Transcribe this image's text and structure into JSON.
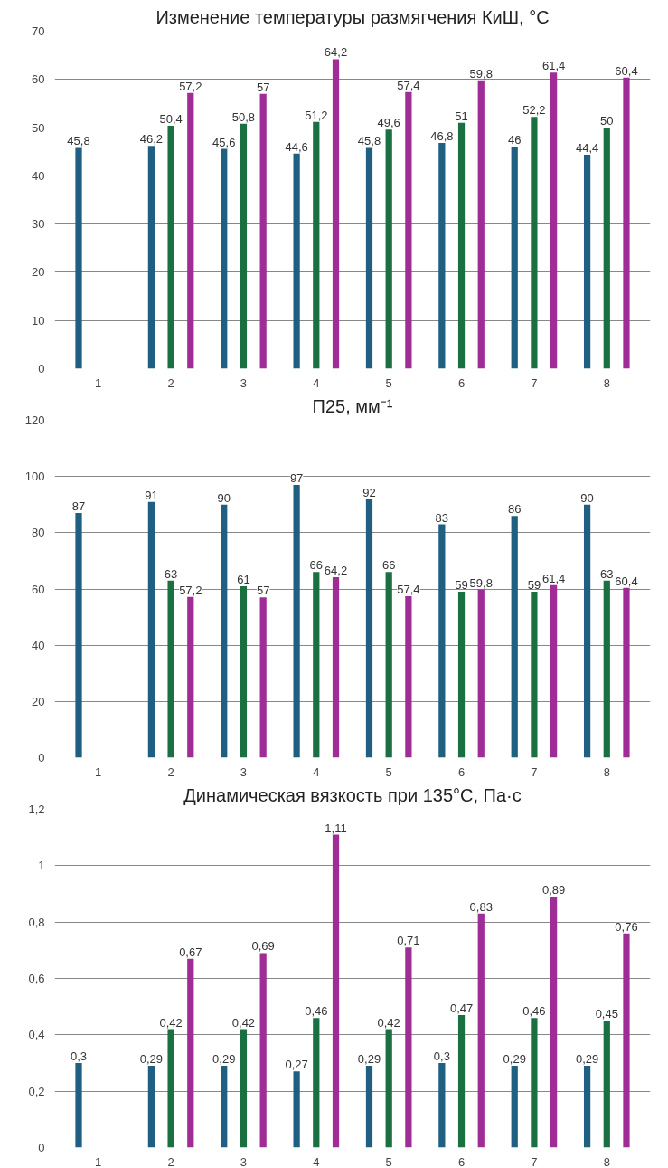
{
  "chart_data": [
    {
      "type": "bar",
      "title": "Изменение температуры размягчения КиШ, °С",
      "categories": [
        "1",
        "2",
        "3",
        "4",
        "5",
        "6",
        "7",
        "8"
      ],
      "ylim": [
        0,
        70
      ],
      "yticks": [
        0,
        10,
        20,
        30,
        40,
        50,
        60,
        70
      ],
      "grid": "y",
      "series": [
        {
          "color": "#1f5f82",
          "values": [
            45.8,
            46.2,
            45.6,
            44.6,
            45.8,
            46.8,
            46,
            44.4
          ],
          "value_labels": [
            "45,8",
            "46,2",
            "45,6",
            "44,6",
            "45,8",
            "46,8",
            "46",
            "44,4"
          ]
        },
        {
          "color": "#1a7040",
          "values": [
            null,
            50.4,
            50.8,
            51.2,
            49.6,
            51,
            52.2,
            50
          ],
          "value_labels": [
            null,
            "50,4",
            "50,8",
            "51,2",
            "49,6",
            "51",
            "52,2",
            "50"
          ]
        },
        {
          "color": "#a02d96",
          "values": [
            null,
            57.2,
            57,
            64.2,
            57.4,
            59.8,
            61.4,
            60.4
          ],
          "value_labels": [
            null,
            "57,2",
            "57",
            "64,2",
            "57,4",
            "59,8",
            "61,4",
            "60,4"
          ]
        }
      ]
    },
    {
      "type": "bar",
      "title": "П25, мм⁻¹",
      "categories": [
        "1",
        "2",
        "3",
        "4",
        "5",
        "6",
        "7",
        "8"
      ],
      "ylim": [
        0,
        120
      ],
      "yticks": [
        0,
        20,
        40,
        60,
        80,
        100,
        120
      ],
      "grid": "y",
      "series": [
        {
          "color": "#1f5f82",
          "values": [
            87,
            91,
            90,
            97,
            92,
            83,
            86,
            90
          ],
          "value_labels": [
            "87",
            "91",
            "90",
            "97",
            "92",
            "83",
            "86",
            "90"
          ]
        },
        {
          "color": "#1a7040",
          "values": [
            null,
            63,
            61,
            66,
            66,
            59,
            59,
            63
          ],
          "value_labels": [
            null,
            "63",
            "61",
            "66",
            "66",
            "59",
            "59",
            "63"
          ]
        },
        {
          "color": "#a02d96",
          "values": [
            null,
            57.2,
            57,
            64.2,
            57.4,
            59.8,
            61.4,
            60.4
          ],
          "value_labels": [
            null,
            "57,2",
            "57",
            "64,2",
            "57,4",
            "59,8",
            "61,4",
            "60,4"
          ]
        }
      ]
    },
    {
      "type": "bar",
      "title": "Динамическая вязкость при 135°С, Па·с",
      "categories": [
        "1",
        "2",
        "3",
        "4",
        "5",
        "6",
        "7",
        "8"
      ],
      "ylim": [
        0,
        1.2
      ],
      "yticks": [
        0,
        {
          "value": 0.2,
          "label": "0,2"
        },
        {
          "value": 0.4,
          "label": "0,4"
        },
        {
          "value": 0.6,
          "label": "0,6"
        },
        {
          "value": 0.8,
          "label": "0,8"
        },
        1,
        {
          "value": 1.2,
          "label": "1,2"
        }
      ],
      "grid": "y",
      "series": [
        {
          "color": "#1f5f82",
          "values": [
            0.3,
            0.29,
            0.29,
            0.27,
            0.29,
            0.3,
            0.29,
            0.29
          ],
          "value_labels": [
            "0,3",
            "0,29",
            "0,29",
            "0,27",
            "0,29",
            "0,3",
            "0,29",
            "0,29"
          ]
        },
        {
          "color": "#1a7040",
          "values": [
            null,
            0.42,
            0.42,
            0.46,
            0.42,
            0.47,
            0.46,
            0.45
          ],
          "value_labels": [
            null,
            "0,42",
            "0,42",
            "0,46",
            "0,42",
            "0,47",
            "0,46",
            "0,45"
          ]
        },
        {
          "color": "#a02d96",
          "values": [
            null,
            0.67,
            0.69,
            1.11,
            0.71,
            0.83,
            0.89,
            0.76
          ],
          "value_labels": [
            null,
            "0,67",
            "0,69",
            "1,11",
            "0,71",
            "0,83",
            "0,89",
            "0,76"
          ]
        }
      ]
    }
  ]
}
